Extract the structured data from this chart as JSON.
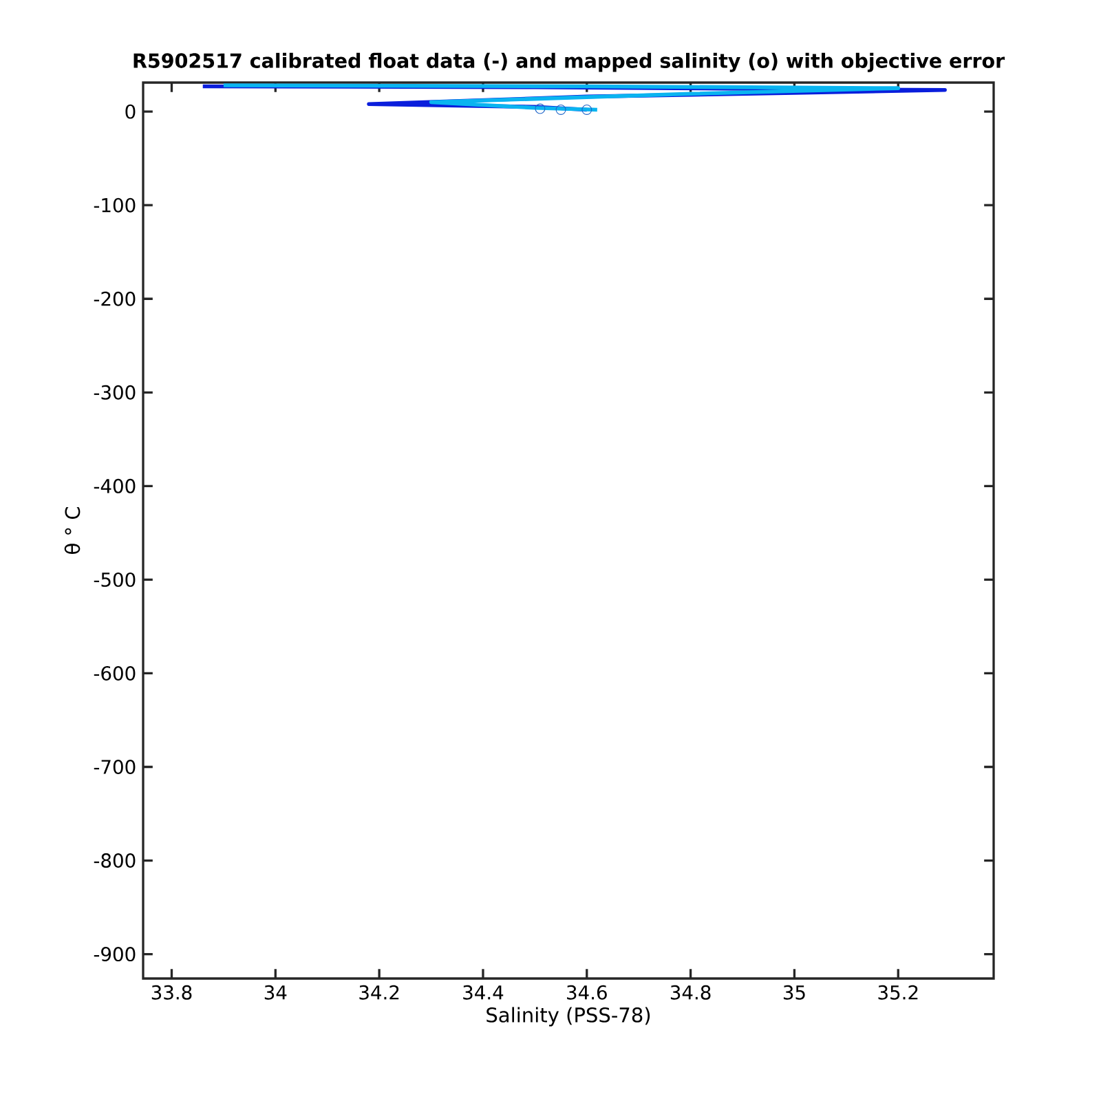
{
  "chart_data": {
    "type": "line",
    "title": "R5902517 calibrated float data (-) and mapped salinity (o) with objective error",
    "xlabel": "Salinity (PSS-78)",
    "ylabel": "θ ° C",
    "series": [
      {
        "color": "#0a1edc",
        "x": [
          33.86,
          34.5,
          35.0,
          35.29,
          35.0,
          34.6,
          34.18,
          34.5,
          34.6
        ],
        "values": [
          27,
          26,
          24,
          23,
          20,
          16,
          8,
          5,
          2
        ]
      },
      {
        "color": "#0ab4f0",
        "x": [
          33.9,
          34.6,
          35.2,
          34.8,
          34.3,
          34.5,
          34.62
        ],
        "values": [
          28,
          27,
          25,
          19,
          10,
          4,
          2
        ]
      },
      {
        "type": "scatter",
        "color": "#1e64c8",
        "marker": "circle",
        "x": [
          34.51,
          34.55,
          34.6
        ],
        "values": [
          3,
          2,
          2
        ]
      }
    ],
    "xlim": [
      33.745,
      35.384
    ],
    "ylim": [
      -926,
      31
    ],
    "xticks": [
      33.8,
      34,
      34.2,
      34.4,
      34.6,
      34.8,
      35,
      35.2
    ],
    "yticks": [
      -900,
      -800,
      -700,
      -600,
      -500,
      -400,
      -300,
      -200,
      -100,
      0
    ],
    "grid": false,
    "marker": "none",
    "line_style": "solid"
  }
}
